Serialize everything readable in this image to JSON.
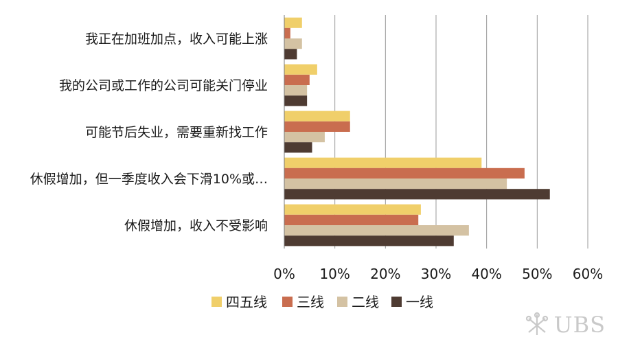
{
  "chart_data": {
    "type": "bar",
    "orientation": "horizontal",
    "title": "",
    "xlabel": "",
    "ylabel": "",
    "categories": [
      "我正在加班加点，收入可能上涨",
      "我的公司或工作的公司可能关门停业",
      "可能节后失业，需要重新找工作",
      "休假增加，但一季度收入会下滑10%或…",
      "休假增加，收入不受影响"
    ],
    "series": [
      {
        "name": "四五线",
        "color": "#f0cf6a",
        "values": [
          3.5,
          6.5,
          13,
          39,
          27
        ]
      },
      {
        "name": "三线",
        "color": "#c96d4f",
        "values": [
          1.2,
          5,
          13,
          47.5,
          26.5
        ]
      },
      {
        "name": "二线",
        "color": "#d4c2a3",
        "values": [
          3.5,
          4.5,
          8,
          44,
          36.5
        ]
      },
      {
        "name": "一线",
        "color": "#4e3b32",
        "values": [
          2.5,
          4.5,
          5.5,
          52.5,
          33.5
        ]
      }
    ],
    "xlim": [
      0,
      60
    ],
    "xticks": [
      "0%",
      "10%",
      "20%",
      "30%",
      "40%",
      "50%",
      "60%"
    ],
    "grid": "vertical",
    "legend": "bottom"
  },
  "brand": {
    "name": "UBS"
  }
}
